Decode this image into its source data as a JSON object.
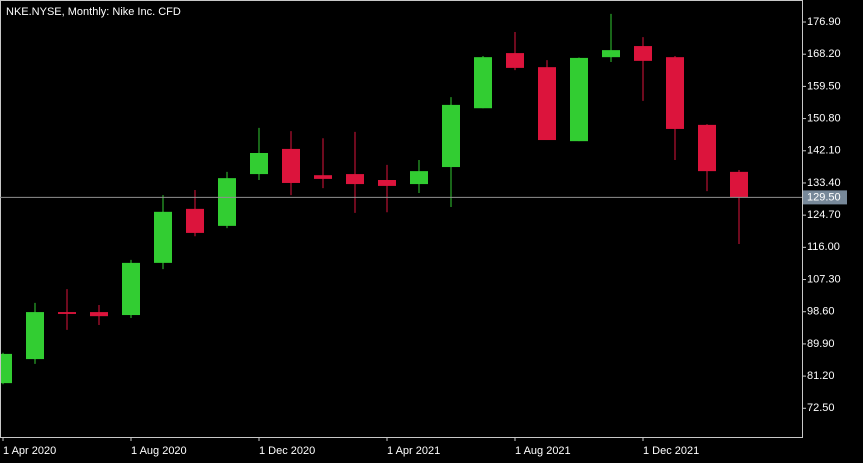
{
  "chart_data": {
    "type": "candlestick",
    "title": "NKE.NYSE, Monthly:  Nike Inc. CFD",
    "categories": [
      "1 Apr 2020",
      null,
      null,
      null,
      "1 Aug 2020",
      null,
      null,
      null,
      "1 Dec 2020",
      null,
      null,
      null,
      "1 Apr 2021",
      null,
      null,
      null,
      "1 Aug 2021",
      null,
      null,
      null,
      "1 Dec 2021",
      null,
      null,
      null
    ],
    "open": [
      79.3,
      85.8,
      98.5,
      98.5,
      97.7,
      111.8,
      126.4,
      121.8,
      135.8,
      142.6,
      135.5,
      135.8,
      134.2,
      133.1,
      137.7,
      153.6,
      168.5,
      164.7,
      144.7,
      167.4,
      170.4,
      167.4,
      149.1,
      136.4
    ],
    "high": [
      87.5,
      101.0,
      104.7,
      100.4,
      112.6,
      130.1,
      131.5,
      136.4,
      148.3,
      147.4,
      145.5,
      147.2,
      138.3,
      139.6,
      156.6,
      167.7,
      174.2,
      166.6,
      167.3,
      179.1,
      172.8,
      167.7,
      149.3,
      136.9
    ],
    "low": [
      79.0,
      84.5,
      93.7,
      95.0,
      96.9,
      110.1,
      119.0,
      121.2,
      134.2,
      130.1,
      132.0,
      125.3,
      125.5,
      130.7,
      126.9,
      153.6,
      163.9,
      145.0,
      144.7,
      166.1,
      155.6,
      139.6,
      131.2,
      116.9
    ],
    "close": [
      87.2,
      98.5,
      98.0,
      97.4,
      111.8,
      125.6,
      119.9,
      134.7,
      141.5,
      133.4,
      134.5,
      133.1,
      132.6,
      136.6,
      154.5,
      167.4,
      164.5,
      145.0,
      167.2,
      169.3,
      166.4,
      148.0,
      136.6,
      129.5
    ],
    "up_color": "#32cd32",
    "down_color": "#dc143c",
    "ylim": [
      64.74,
      182.85
    ],
    "yticks": [
      {
        "value": 72.5,
        "label": "72.50"
      },
      {
        "value": 81.2,
        "label": "81.20"
      },
      {
        "value": 89.9,
        "label": "89.90"
      },
      {
        "value": 98.6,
        "label": "98.60"
      },
      {
        "value": 107.3,
        "label": "107.30"
      },
      {
        "value": 116,
        "label": "116.00"
      },
      {
        "value": 124.7,
        "label": "124.70"
      },
      {
        "value": 133.4,
        "label": "133.40"
      },
      {
        "value": 142.1,
        "label": "142.10"
      },
      {
        "value": 150.8,
        "label": "150.80"
      },
      {
        "value": 159.5,
        "label": "159.50"
      },
      {
        "value": 168.2,
        "label": "168.20"
      },
      {
        "value": 176.9,
        "label": "176.90"
      }
    ],
    "last_price": {
      "value": 129.5,
      "label": "129.50"
    }
  }
}
